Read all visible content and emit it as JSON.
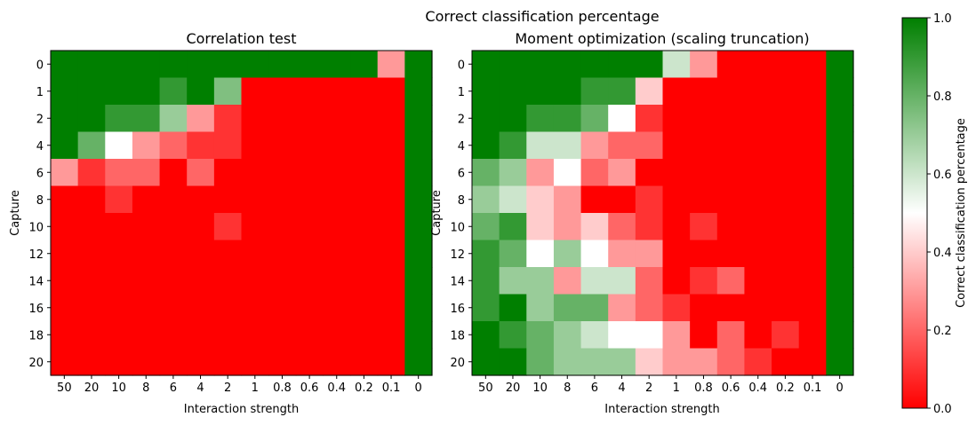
{
  "suptitle": "Correct classification percentage",
  "colors": {
    "low": "#ff0000",
    "mid": "#ffffff",
    "high": "#007f00"
  },
  "chart_data": [
    {
      "type": "heatmap",
      "title": "Correlation test",
      "xlabel": "Interaction strength",
      "ylabel": "Capture",
      "x": [
        "50",
        "20",
        "10",
        "8",
        "6",
        "4",
        "2",
        "1",
        "0.8",
        "0.6",
        "0.4",
        "0.2",
        "0.1",
        "0"
      ],
      "y": [
        "0",
        "1",
        "2",
        "4",
        "6",
        "8",
        "10",
        "12",
        "14",
        "16",
        "18",
        "20"
      ],
      "values": [
        [
          1,
          1,
          1,
          1,
          1,
          1,
          1,
          1,
          1,
          1,
          1,
          1,
          0.3,
          1
        ],
        [
          1,
          1,
          1,
          1,
          0.9,
          1,
          0.75,
          0,
          0,
          0,
          0,
          0,
          0,
          1
        ],
        [
          1,
          1,
          0.9,
          0.9,
          0.7,
          0.3,
          0.1,
          0,
          0,
          0,
          0,
          0,
          0,
          1
        ],
        [
          1,
          0.8,
          0.5,
          0.3,
          0.2,
          0.1,
          0.1,
          0,
          0,
          0,
          0,
          0,
          0,
          1
        ],
        [
          0.3,
          0.1,
          0.2,
          0.2,
          0,
          0.2,
          0,
          0,
          0,
          0,
          0,
          0,
          0,
          1
        ],
        [
          0,
          0,
          0.1,
          0,
          0,
          0,
          0,
          0,
          0,
          0,
          0,
          0,
          0,
          1
        ],
        [
          0,
          0,
          0,
          0,
          0,
          0,
          0.1,
          0,
          0,
          0,
          0,
          0,
          0,
          1
        ],
        [
          0,
          0,
          0,
          0,
          0,
          0,
          0,
          0,
          0,
          0,
          0,
          0,
          0,
          1
        ],
        [
          0,
          0,
          0,
          0,
          0,
          0,
          0,
          0,
          0,
          0,
          0,
          0,
          0,
          1
        ],
        [
          0,
          0,
          0,
          0,
          0,
          0,
          0,
          0,
          0,
          0,
          0,
          0,
          0,
          1
        ],
        [
          0,
          0,
          0,
          0,
          0,
          0,
          0,
          0,
          0,
          0,
          0,
          0,
          0,
          1
        ],
        [
          0,
          0,
          0,
          0,
          0,
          0,
          0,
          0,
          0,
          0,
          0,
          0,
          0,
          1
        ]
      ],
      "vmin": 0,
      "vmax": 1
    },
    {
      "type": "heatmap",
      "title": "Moment optimization (scaling truncation)",
      "xlabel": "Interaction strength",
      "ylabel": "Capture",
      "x": [
        "50",
        "20",
        "10",
        "8",
        "6",
        "4",
        "2",
        "1",
        "0.8",
        "0.6",
        "0.4",
        "0.2",
        "0.1",
        "0"
      ],
      "y": [
        "0",
        "1",
        "2",
        "4",
        "6",
        "8",
        "10",
        "12",
        "14",
        "16",
        "18",
        "20"
      ],
      "values": [
        [
          1,
          1,
          1,
          1,
          1,
          1,
          1,
          0.6,
          0.3,
          0,
          0,
          0,
          0,
          1
        ],
        [
          1,
          1,
          1,
          1,
          0.9,
          0.9,
          0.4,
          0,
          0,
          0,
          0,
          0,
          0,
          1
        ],
        [
          1,
          1,
          0.9,
          0.9,
          0.8,
          0.5,
          0.1,
          0,
          0,
          0,
          0,
          0,
          0,
          1
        ],
        [
          1,
          0.9,
          0.6,
          0.6,
          0.3,
          0.2,
          0.2,
          0,
          0,
          0,
          0,
          0,
          0,
          1
        ],
        [
          0.8,
          0.7,
          0.3,
          0.5,
          0.2,
          0.3,
          0,
          0,
          0,
          0,
          0,
          0,
          0,
          1
        ],
        [
          0.7,
          0.6,
          0.4,
          0.3,
          0,
          0,
          0.1,
          0,
          0,
          0,
          0,
          0,
          0,
          1
        ],
        [
          0.8,
          0.9,
          0.4,
          0.3,
          0.4,
          0.2,
          0.1,
          0,
          0.1,
          0,
          0,
          0,
          0,
          1
        ],
        [
          0.9,
          0.8,
          0.5,
          0.7,
          0.5,
          0.3,
          0.3,
          0,
          0,
          0,
          0,
          0,
          0,
          1
        ],
        [
          0.9,
          0.7,
          0.7,
          0.3,
          0.6,
          0.6,
          0.2,
          0,
          0.1,
          0.2,
          0,
          0,
          0,
          1
        ],
        [
          0.9,
          1,
          0.7,
          0.8,
          0.8,
          0.3,
          0.2,
          0.1,
          0,
          0,
          0,
          0,
          0,
          1
        ],
        [
          1,
          0.9,
          0.8,
          0.7,
          0.6,
          0.5,
          0.5,
          0.3,
          0,
          0.2,
          0,
          0.1,
          0,
          1
        ],
        [
          1,
          1,
          0.8,
          0.7,
          0.7,
          0.7,
          0.4,
          0.3,
          0.3,
          0.2,
          0.1,
          0,
          0,
          1
        ]
      ],
      "vmin": 0,
      "vmax": 1
    }
  ],
  "colorbar": {
    "label": "Correct classification percentage",
    "ticks": [
      "0.0",
      "0.2",
      "0.4",
      "0.6",
      "0.8",
      "1.0"
    ],
    "vmin": 0,
    "vmax": 1
  }
}
